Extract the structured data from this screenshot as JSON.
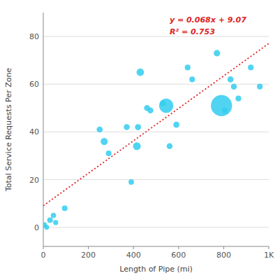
{
  "chart_data": {
    "type": "scatter",
    "xlabel": "Length of Pipe (mi)",
    "ylabel": "Total Service Requests Per Zone",
    "xlim": [
      0,
      1000
    ],
    "ylim": [
      -8,
      90
    ],
    "xticks": [
      0,
      200,
      400,
      600,
      800,
      {
        "value": 1000,
        "label": "1K"
      }
    ],
    "yticks": [
      0,
      20,
      40,
      60,
      80
    ],
    "grid": true,
    "series": [
      {
        "type": "scatter",
        "color": "#33CCEE",
        "x": [
          5,
          15,
          30,
          45,
          55,
          95,
          250,
          270,
          290,
          370,
          390,
          415,
          420,
          430,
          460,
          475,
          530,
          545,
          560,
          590,
          640,
          660,
          770,
          790,
          805,
          830,
          845,
          865,
          920,
          960
        ],
        "values": [
          1,
          0,
          3,
          5,
          2,
          8,
          41,
          36,
          31,
          42,
          19,
          34,
          42,
          65,
          50,
          49,
          52,
          51,
          34,
          43,
          67,
          62,
          73,
          51,
          49,
          62,
          59,
          54,
          67,
          59
        ],
        "sizes": [
          30,
          25,
          35,
          30,
          28,
          35,
          40,
          55,
          35,
          38,
          32,
          65,
          40,
          60,
          38,
          38,
          35,
          220,
          38,
          40,
          35,
          35,
          45,
          480,
          35,
          40,
          38,
          35,
          35,
          35
        ]
      },
      {
        "type": "line",
        "color": "#DD2222",
        "line_style": "dotted",
        "x": [
          0,
          1000
        ],
        "values": [
          9.07,
          77.07
        ]
      }
    ],
    "annotations": [
      "y = 0.068x + 9.07",
      "R² = 0.753"
    ]
  }
}
